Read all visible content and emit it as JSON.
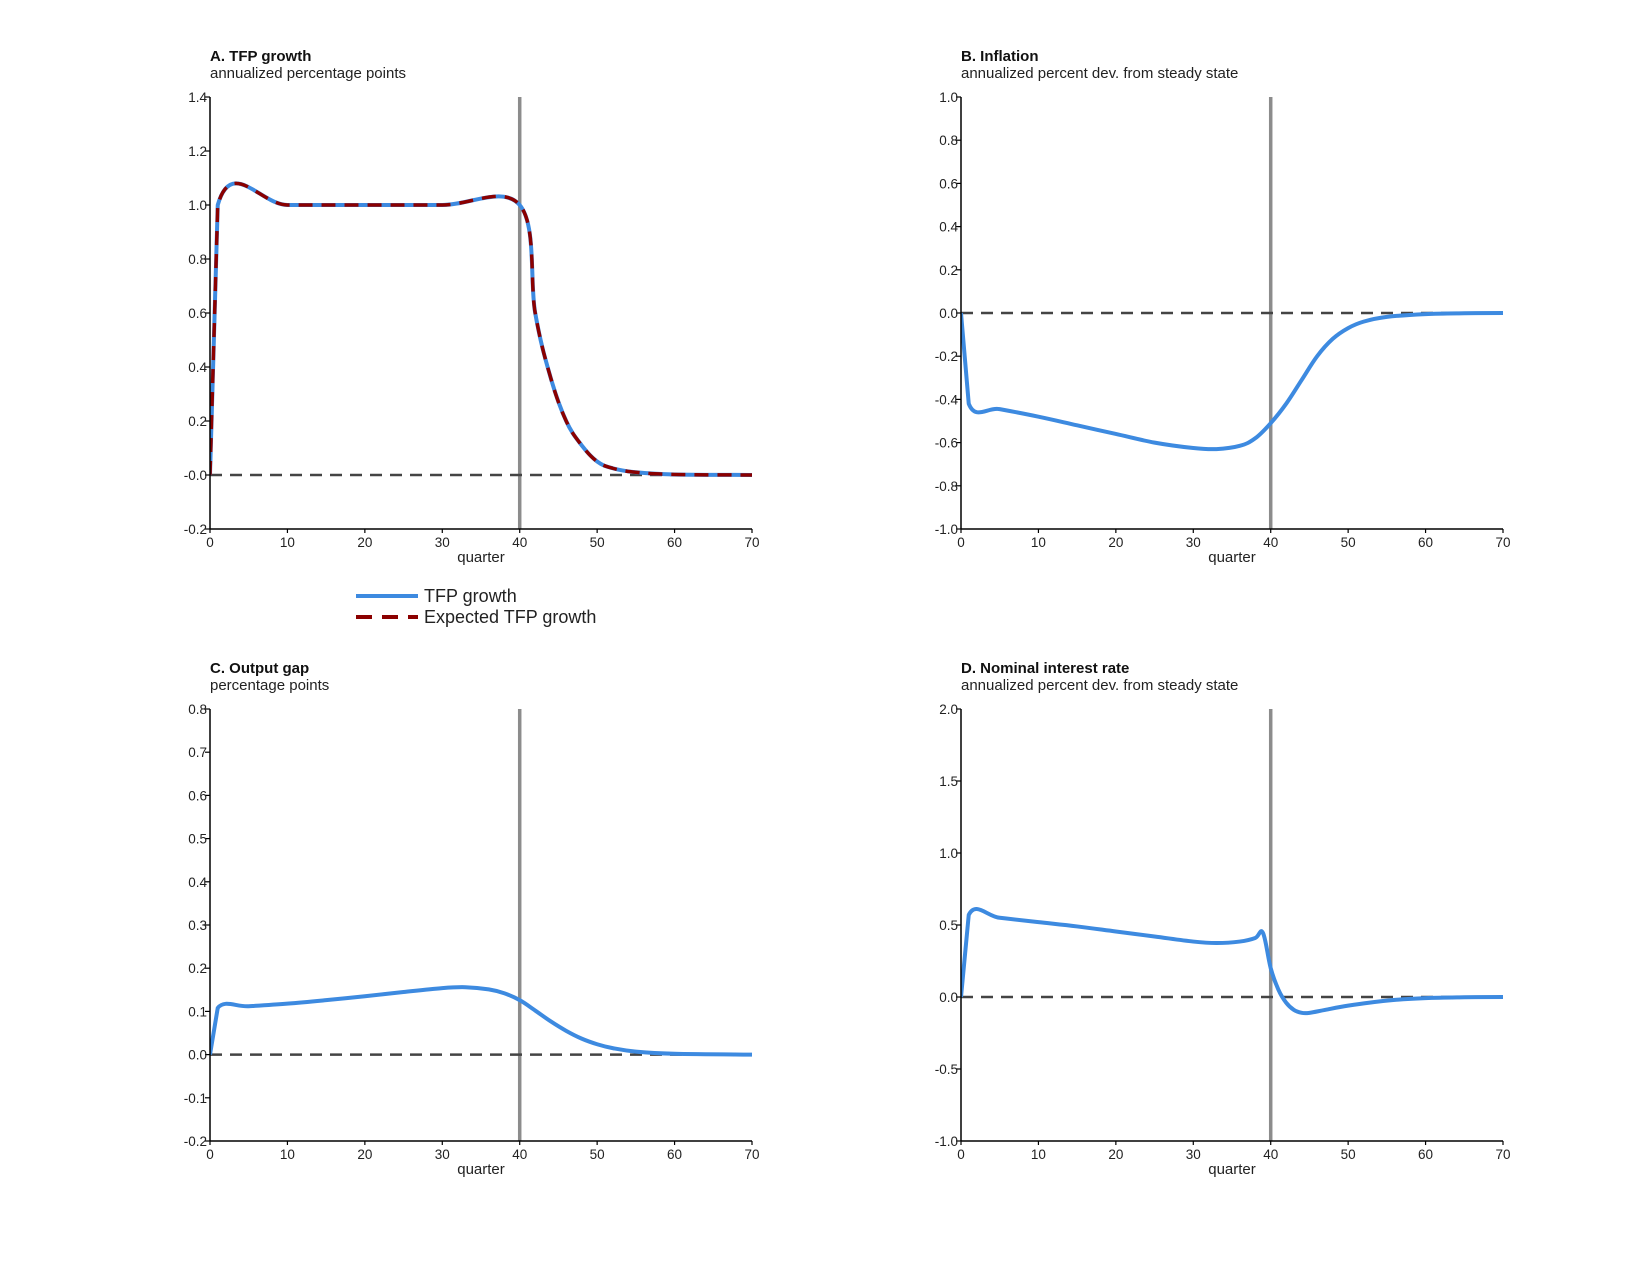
{
  "figure": {
    "legend": {
      "placement": "below panel A",
      "entries": [
        {
          "label": "TFP growth",
          "color": "#3d8ae0",
          "style": "solid"
        },
        {
          "label": "Expected TFP growth",
          "color": "#8b0000",
          "style": "dashed"
        }
      ]
    }
  },
  "colors": {
    "tfp": "#3d8ae0",
    "expected": "#8b0000",
    "zero_line": "#444444",
    "marker_line": "#8c8c8c",
    "axis": "#000000"
  },
  "chart_data": [
    {
      "id": "A",
      "type": "line",
      "title": "A. TFP growth",
      "subtitle": "annualized percentage points",
      "xlabel": "quarter",
      "xlim": [
        0,
        70
      ],
      "ylim": [
        -0.2,
        1.4
      ],
      "xticks": [
        0,
        10,
        20,
        30,
        40,
        50,
        60,
        70
      ],
      "yticks": [
        -0.2,
        0.0,
        0.2,
        0.4,
        0.6,
        0.8,
        1.0,
        1.2,
        1.4
      ],
      "ytick_labels": [
        "-0.2",
        "-0.0",
        "0.2",
        "0.4",
        "0.6",
        "0.8",
        "1.0",
        "1.2",
        "1.4"
      ],
      "vline": 40,
      "hline": 0,
      "series": [
        {
          "name": "TFP growth",
          "color": "#3d8ae0",
          "style": "solid",
          "points": [
            [
              0,
              0
            ],
            [
              1,
              1
            ],
            [
              10,
              1
            ],
            [
              20,
              1
            ],
            [
              30,
              1
            ],
            [
              40,
              1
            ],
            [
              42,
              0.6
            ],
            [
              44,
              0.36
            ],
            [
              46,
              0.2
            ],
            [
              48,
              0.11
            ],
            [
              50,
              0.05
            ],
            [
              52,
              0.025
            ],
            [
              55,
              0.01
            ],
            [
              60,
              0.002
            ],
            [
              70,
              0
            ]
          ]
        },
        {
          "name": "Expected TFP growth",
          "color": "#8b0000",
          "style": "dashed",
          "points": [
            [
              0,
              0
            ],
            [
              1,
              1
            ],
            [
              10,
              1
            ],
            [
              20,
              1
            ],
            [
              30,
              1
            ],
            [
              40,
              1
            ],
            [
              42,
              0.6
            ],
            [
              44,
              0.36
            ],
            [
              46,
              0.2
            ],
            [
              48,
              0.11
            ],
            [
              50,
              0.05
            ],
            [
              52,
              0.025
            ],
            [
              55,
              0.01
            ],
            [
              60,
              0.002
            ],
            [
              70,
              0
            ]
          ]
        }
      ]
    },
    {
      "id": "B",
      "type": "line",
      "title": "B. Inflation",
      "subtitle": "annualized percent dev. from steady state",
      "xlabel": "quarter",
      "xlim": [
        0,
        70
      ],
      "ylim": [
        -1.0,
        1.0
      ],
      "xticks": [
        0,
        10,
        20,
        30,
        40,
        50,
        60,
        70
      ],
      "yticks": [
        -1.0,
        -0.8,
        -0.6,
        -0.4,
        -0.2,
        0.0,
        0.2,
        0.4,
        0.6,
        0.8,
        1.0
      ],
      "ytick_labels": [
        "-1.0",
        "-0.8",
        "-0.6",
        "-0.4",
        "-0.2",
        "0.0",
        "0.2",
        "0.4",
        "0.6",
        "0.8",
        "1.0"
      ],
      "vline": 40,
      "hline": 0,
      "series": [
        {
          "name": "TFP growth",
          "color": "#3d8ae0",
          "style": "solid",
          "points": [
            [
              0,
              0
            ],
            [
              1,
              -0.42
            ],
            [
              5,
              -0.445
            ],
            [
              10,
              -0.48
            ],
            [
              15,
              -0.52
            ],
            [
              20,
              -0.56
            ],
            [
              25,
              -0.6
            ],
            [
              30,
              -0.625
            ],
            [
              33,
              -0.63
            ],
            [
              36,
              -0.615
            ],
            [
              38,
              -0.58
            ],
            [
              40,
              -0.51
            ],
            [
              42,
              -0.42
            ],
            [
              44,
              -0.31
            ],
            [
              46,
              -0.2
            ],
            [
              48,
              -0.12
            ],
            [
              50,
              -0.07
            ],
            [
              52,
              -0.04
            ],
            [
              55,
              -0.018
            ],
            [
              60,
              -0.005
            ],
            [
              65,
              -0.001
            ],
            [
              70,
              0
            ]
          ]
        }
      ]
    },
    {
      "id": "C",
      "type": "line",
      "title": "C. Output gap",
      "subtitle": "percentage points",
      "xlabel": "quarter",
      "xlim": [
        0,
        70
      ],
      "ylim": [
        -0.2,
        0.8
      ],
      "xticks": [
        0,
        10,
        20,
        30,
        40,
        50,
        60,
        70
      ],
      "yticks": [
        -0.2,
        -0.1,
        0.0,
        0.1,
        0.2,
        0.3,
        0.4,
        0.5,
        0.6,
        0.7,
        0.8
      ],
      "ytick_labels": [
        "-0.2",
        "-0.1",
        "0.0",
        "0.1",
        "0.2",
        "0.3",
        "0.4",
        "0.5",
        "0.6",
        "0.7",
        "0.8"
      ],
      "vline": 40,
      "hline": 0,
      "series": [
        {
          "name": "TFP growth",
          "color": "#3d8ae0",
          "style": "solid",
          "points": [
            [
              0,
              0
            ],
            [
              1,
              0.108
            ],
            [
              5,
              0.112
            ],
            [
              10,
              0.118
            ],
            [
              15,
              0.126
            ],
            [
              20,
              0.135
            ],
            [
              25,
              0.145
            ],
            [
              30,
              0.154
            ],
            [
              33,
              0.156
            ],
            [
              36,
              0.151
            ],
            [
              38,
              0.142
            ],
            [
              40,
              0.126
            ],
            [
              42,
              0.102
            ],
            [
              44,
              0.077
            ],
            [
              46,
              0.055
            ],
            [
              48,
              0.037
            ],
            [
              50,
              0.024
            ],
            [
              52,
              0.015
            ],
            [
              55,
              0.007
            ],
            [
              60,
              0.002
            ],
            [
              70,
              0
            ]
          ]
        }
      ]
    },
    {
      "id": "D",
      "type": "line",
      "title": "D. Nominal interest rate",
      "subtitle": "annualized percent dev. from steady state",
      "xlabel": "quarter",
      "xlim": [
        0,
        70
      ],
      "ylim": [
        -1.0,
        2.0
      ],
      "xticks": [
        0,
        10,
        20,
        30,
        40,
        50,
        60,
        70
      ],
      "yticks": [
        -1.0,
        -0.5,
        0.0,
        0.5,
        1.0,
        1.5,
        2.0
      ],
      "ytick_labels": [
        "-1.0",
        "-0.5",
        "0.0",
        "0.5",
        "1.0",
        "1.5",
        "2.0"
      ],
      "vline": 40,
      "hline": 0,
      "series": [
        {
          "name": "TFP growth",
          "color": "#3d8ae0",
          "style": "solid",
          "points": [
            [
              0,
              0
            ],
            [
              1,
              0.57
            ],
            [
              5,
              0.55
            ],
            [
              10,
              0.52
            ],
            [
              15,
              0.49
            ],
            [
              20,
              0.455
            ],
            [
              25,
              0.42
            ],
            [
              30,
              0.385
            ],
            [
              33,
              0.375
            ],
            [
              36,
              0.385
            ],
            [
              38,
              0.41
            ],
            [
              39,
              0.445
            ],
            [
              40,
              0.2
            ],
            [
              41,
              0.05
            ],
            [
              42,
              -0.04
            ],
            [
              43,
              -0.09
            ],
            [
              44,
              -0.11
            ],
            [
              45,
              -0.11
            ],
            [
              47,
              -0.09
            ],
            [
              50,
              -0.06
            ],
            [
              55,
              -0.025
            ],
            [
              60,
              -0.008
            ],
            [
              65,
              -0.002
            ],
            [
              70,
              0
            ]
          ]
        }
      ]
    }
  ]
}
